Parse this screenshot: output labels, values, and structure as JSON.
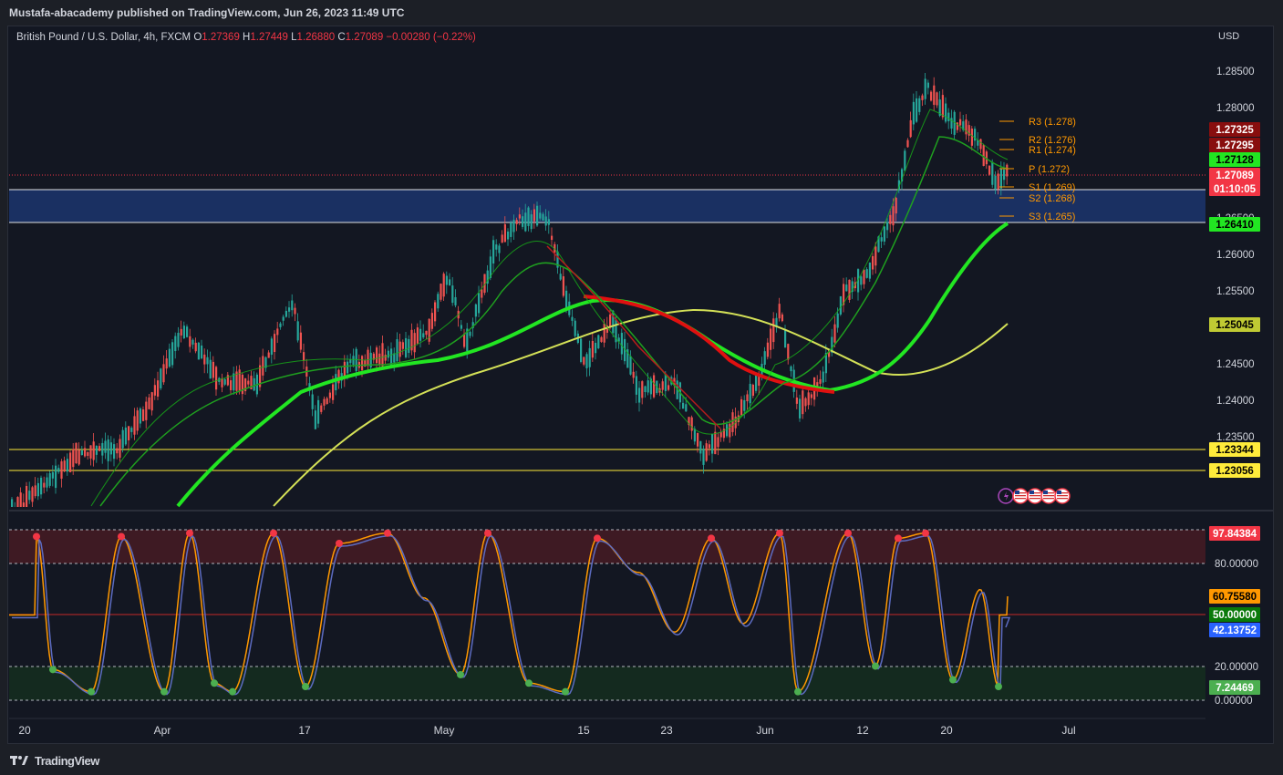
{
  "publisher": "Mustafa-abacademy published on TradingView.com, Jun 26, 2023 11:49 UTC",
  "symbol": {
    "name": "British Pound / U.S. Dollar, 4h, FXCM",
    "open_label": "O",
    "open": "1.27369",
    "high_label": "H",
    "high": "1.27449",
    "low_label": "L",
    "low": "1.26880",
    "close_label": "C",
    "close": "1.27089",
    "change": "−0.00280 (−0.22%)"
  },
  "currency": "USD",
  "price_axis": [
    "1.28500",
    "1.28000",
    "1.26500",
    "1.26000",
    "1.25500",
    "1.24500",
    "1.24000",
    "1.23500"
  ],
  "price_tags": [
    {
      "value": "1.27325",
      "color": "#880e0e"
    },
    {
      "value": "1.27295",
      "color": "#880e0e"
    },
    {
      "value": "1.27128",
      "color": "#22e622"
    },
    {
      "value": "1.27089",
      "color": "#f23645"
    },
    {
      "value": "01:10:05",
      "color": "#f23645"
    },
    {
      "value": "1.26410",
      "color": "#22e622"
    },
    {
      "value": "1.25045",
      "color": "#c0ca33"
    },
    {
      "value": "1.23344",
      "color": "#ffeb3b"
    },
    {
      "value": "1.23056",
      "color": "#ffeb3b"
    }
  ],
  "pivots": [
    {
      "label": "R3 (1.278)"
    },
    {
      "label": "R2 (1.276)"
    },
    {
      "label": "R1 (1.274)"
    },
    {
      "label": "P (1.272)"
    },
    {
      "label": "S1 (1.269)"
    },
    {
      "label": "S2 (1.268)"
    },
    {
      "label": "S3 (1.265)"
    }
  ],
  "osc_axis": [
    "80.00000",
    "20.00000",
    "0.00000"
  ],
  "osc_tags": [
    {
      "value": "97.84384",
      "color": "#f23645"
    },
    {
      "value": "60.75580",
      "color": "#ff9800"
    },
    {
      "value": "50.00000",
      "color": "#0a7a0a"
    },
    {
      "value": "42.13752",
      "color": "#2962ff"
    },
    {
      "value": "7.24469",
      "color": "#4caf50"
    }
  ],
  "time_axis": [
    "20",
    "Apr",
    "17",
    "May",
    "15",
    "23",
    "Jun",
    "12",
    "20",
    "Jul"
  ],
  "footer": {
    "brand": "TradingView"
  },
  "colors": {
    "background": "#131722",
    "up": "#26a69a",
    "down": "#ef5350",
    "ema_fast": "#00e600",
    "ema_slow": "#d4e157",
    "zone": "#1e3a78"
  }
}
